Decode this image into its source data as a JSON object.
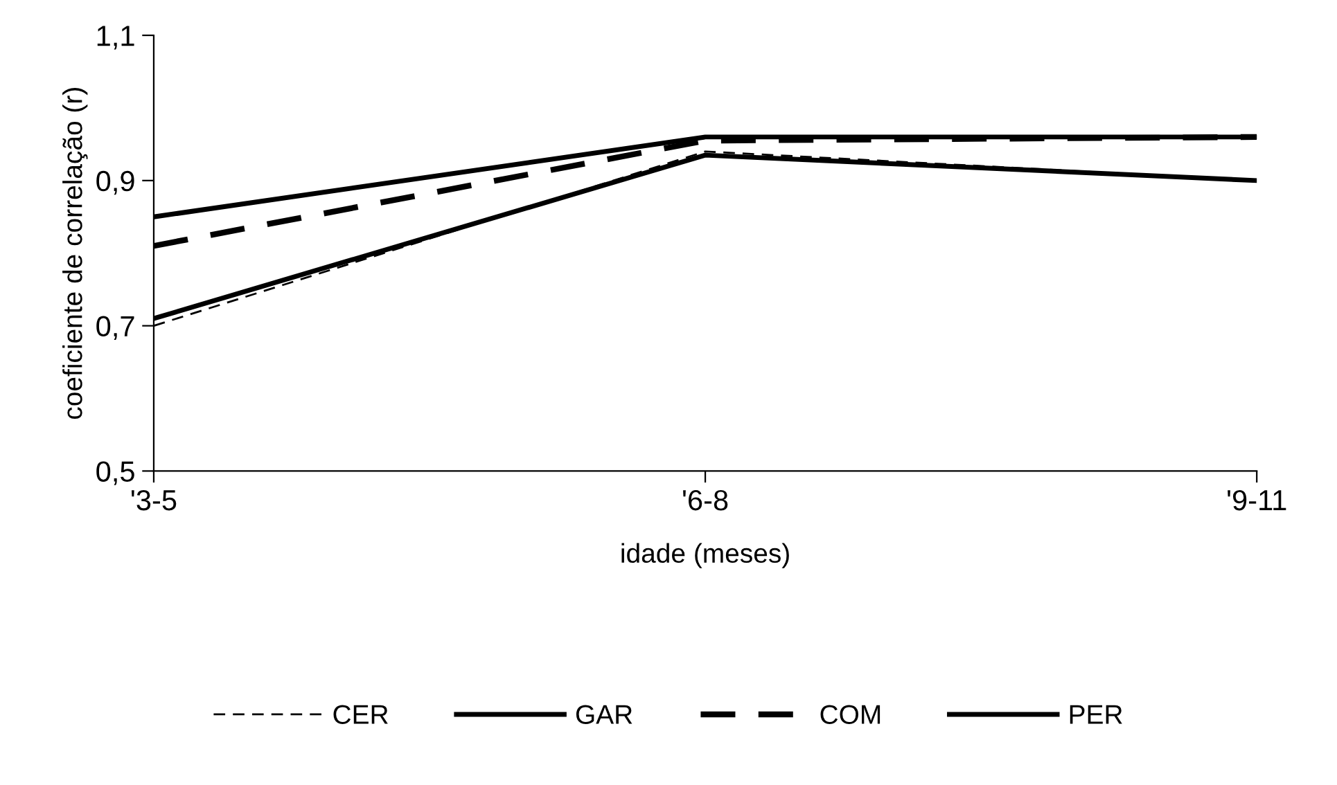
{
  "chart_data": {
    "type": "line",
    "xlabel": "idade (meses)",
    "ylabel": "coeficiente de correlação (r)",
    "categories": [
      "'3-5",
      "'6-8",
      "'9-11"
    ],
    "ylim": [
      0.5,
      1.1
    ],
    "yticks": [
      {
        "value": 0.5,
        "label": "0,5"
      },
      {
        "value": 0.7,
        "label": "0,7"
      },
      {
        "value": 0.9,
        "label": "0,9"
      },
      {
        "value": 1.1,
        "label": "1,1"
      }
    ],
    "grid": false,
    "legend": "bottom",
    "series": [
      {
        "name": "CER",
        "color": "#000000",
        "line_style": "dashed",
        "values": [
          0.7,
          0.94,
          0.9
        ]
      },
      {
        "name": "GAR",
        "color": "#000000",
        "line_style": "solid",
        "values": [
          0.71,
          0.935,
          0.9
        ]
      },
      {
        "name": "COM",
        "color": "#000000",
        "line_style": "dashed",
        "values": [
          0.81,
          0.955,
          0.96
        ]
      },
      {
        "name": "PER",
        "color": "#000000",
        "line_style": "solid",
        "values": [
          0.85,
          0.96,
          0.96
        ]
      }
    ]
  }
}
